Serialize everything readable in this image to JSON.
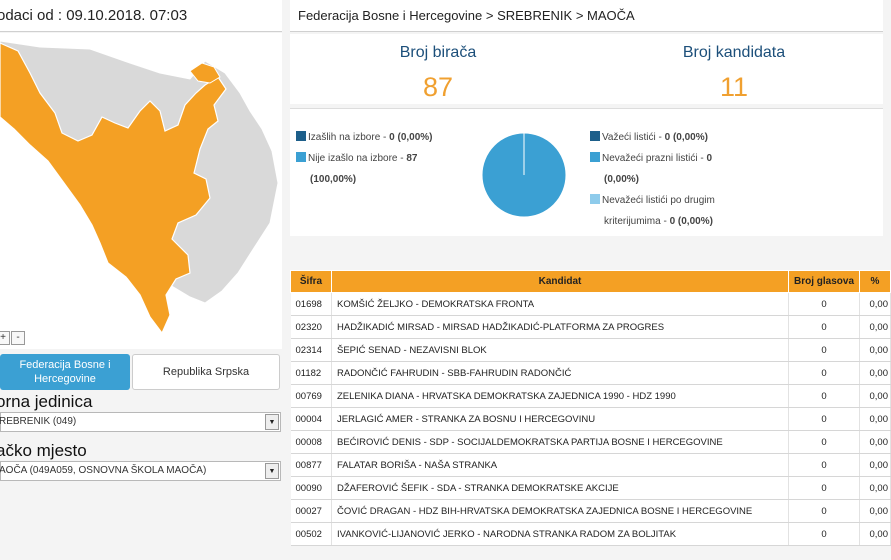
{
  "header": {
    "updated": "odaci od : 09.10.2018. 07:03"
  },
  "breadcrumb": "Federacija Bosne i Hercegovine > SREBRENIK > MAOČA",
  "stats": {
    "voters_label": "Broj birača",
    "voters_value": "87",
    "candidates_label": "Broj kandidata",
    "candidates_value": "11"
  },
  "turnout": {
    "left_legend": [
      {
        "label": "Izašlih na izbore - ",
        "value": "0 (0,00%)",
        "color": "#1d5f8a"
      },
      {
        "label": "Nije izašlo na izbore - ",
        "value": "87",
        "value2": "(100,00%)",
        "color": "#3ba0d3"
      }
    ],
    "right_legend": [
      {
        "label": "Važeći listići - ",
        "value": "0 (0,00%)",
        "color": "#1d5f8a"
      },
      {
        "label": "Nevažeći prazni listići - ",
        "value": "0",
        "value2": "(0,00%)",
        "color": "#3ba0d3"
      },
      {
        "label": "Nevažeći listići po drugim",
        "label2": "kriterijumima - ",
        "value": "0 (0,00%)",
        "color": "#8ecbeb"
      }
    ],
    "pie_color": "#3ba0d3"
  },
  "map": {
    "highlight_color": "#f4a024",
    "other_color": "#d6d6d6",
    "zoom_in": "+",
    "zoom_out": "-"
  },
  "entity_tabs": {
    "active": "Federacija Bosne i Hercegovine",
    "active_line1": "Federacija Bosne i",
    "active_line2": "Hercegovine",
    "inactive": "Republika Srpska"
  },
  "unit": {
    "label": "orna jedinica",
    "value": "REBRENIK (049)"
  },
  "place": {
    "label": "ačko mjesto",
    "value": "AOČA (049A059, OSNOVNA ŠKOLA  MAOČA)"
  },
  "table": {
    "headers": [
      "Šifra",
      "Kandidat",
      "Broj glasova",
      "%"
    ],
    "rows": [
      [
        "01698",
        "KOMŠIĆ ŽELJKO - DEMOKRATSKA FRONTA",
        "0",
        "0,00"
      ],
      [
        "02320",
        "HADŽIKADIĆ MIRSAD - MIRSAD HADŽIKADIĆ-PLATFORMA ZA PROGRES",
        "0",
        "0,00"
      ],
      [
        "02314",
        "ŠEPIĆ SENAD - NEZAVISNI BLOK",
        "0",
        "0,00"
      ],
      [
        "01182",
        "RADONČIĆ FAHRUDIN - SBB-FAHRUDIN RADONČIĆ",
        "0",
        "0,00"
      ],
      [
        "00769",
        "ZELENIKA DIANA - HRVATSKA DEMOKRATSKA ZAJEDNICA 1990 - HDZ 1990",
        "0",
        "0,00"
      ],
      [
        "00004",
        "JERLAGIĆ AMER - STRANKA ZA BOSNU I HERCEGOVINU",
        "0",
        "0,00"
      ],
      [
        "00008",
        "BEĆIROVIĆ DENIS - SDP - SOCIJALDEMOKRATSKA PARTIJA BOSNE I HERCEGOVINE",
        "0",
        "0,00"
      ],
      [
        "00877",
        "FALATAR BORIŠA - NAŠA STRANKA",
        "0",
        "0,00"
      ],
      [
        "00090",
        "DŽAFEROVIĆ ŠEFIK - SDA - STRANKA DEMOKRATSKE AKCIJE",
        "0",
        "0,00"
      ],
      [
        "00027",
        "ČOVIĆ DRAGAN - HDZ BIH-HRVATSKA DEMOKRATSKA ZAJEDNICA BOSNE I HERCEGOVINE",
        "0",
        "0,00"
      ],
      [
        "00502",
        "IVANKOVIĆ-LIJANOVIĆ JERKO - NARODNA STRANKA RADOM ZA BOLJITAK",
        "0",
        "0,00"
      ]
    ]
  }
}
